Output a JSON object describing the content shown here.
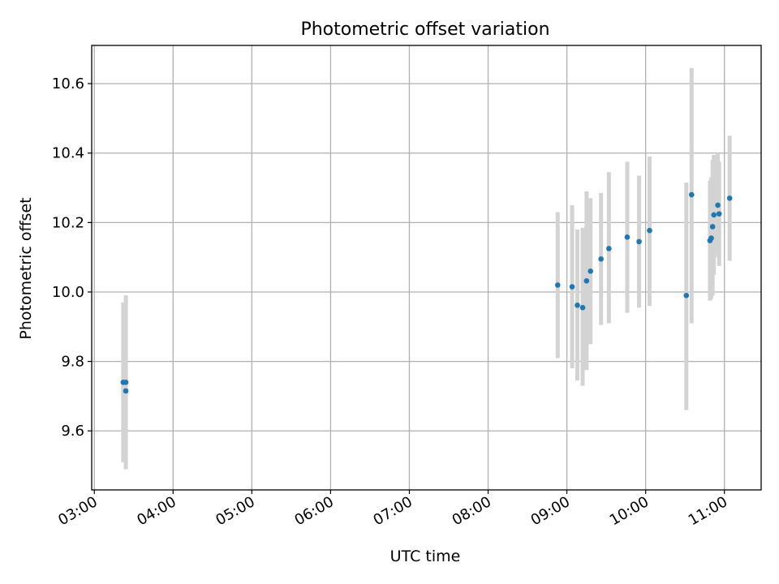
{
  "chart_data": {
    "type": "scatter",
    "title": "Photometric offset variation",
    "xlabel": "UTC time",
    "ylabel": "Photometric offset",
    "x_ticks": [
      "03:00",
      "04:00",
      "05:00",
      "06:00",
      "07:00",
      "08:00",
      "09:00",
      "10:00",
      "11:00"
    ],
    "y_ticks": [
      "9.6",
      "9.8",
      "10.0",
      "10.2",
      "10.4",
      "10.6"
    ],
    "xlim": [
      "02:58",
      "11:28"
    ],
    "ylim": [
      9.43,
      10.71
    ],
    "grid": true,
    "colors": {
      "points": "#1f77b4",
      "errorbars": "#d3d3d3",
      "grid": "#b0b0b0",
      "axes": "#000000"
    },
    "series": [
      {
        "points": [
          {
            "x": "03:22",
            "y": 9.74,
            "err_low": 9.51,
            "err_high": 9.97
          },
          {
            "x": "03:24",
            "y": 9.74,
            "err_low": 9.49,
            "err_high": 9.99
          },
          {
            "x": "03:24",
            "y": 9.715,
            "err_low": 9.49,
            "err_high": 9.99
          },
          {
            "x": "08:53",
            "y": 10.02,
            "err_low": 9.81,
            "err_high": 10.23
          },
          {
            "x": "09:04",
            "y": 10.015,
            "err_low": 9.78,
            "err_high": 10.25
          },
          {
            "x": "09:08",
            "y": 9.962,
            "err_low": 9.745,
            "err_high": 10.18
          },
          {
            "x": "09:12",
            "y": 9.955,
            "err_low": 9.73,
            "err_high": 10.185
          },
          {
            "x": "09:15",
            "y": 10.032,
            "err_low": 9.775,
            "err_high": 10.29
          },
          {
            "x": "09:18",
            "y": 10.06,
            "err_low": 9.85,
            "err_high": 10.27
          },
          {
            "x": "09:26",
            "y": 10.095,
            "err_low": 9.905,
            "err_high": 10.285
          },
          {
            "x": "09:32",
            "y": 10.125,
            "err_low": 9.91,
            "err_high": 10.345
          },
          {
            "x": "09:46",
            "y": 10.158,
            "err_low": 9.94,
            "err_high": 10.375
          },
          {
            "x": "09:55",
            "y": 10.145,
            "err_low": 9.955,
            "err_high": 10.335
          },
          {
            "x": "10:03",
            "y": 10.177,
            "err_low": 9.96,
            "err_high": 10.39
          },
          {
            "x": "10:31",
            "y": 9.99,
            "err_low": 9.66,
            "err_high": 10.315
          },
          {
            "x": "10:35",
            "y": 10.28,
            "err_low": 9.91,
            "err_high": 10.645
          },
          {
            "x": "10:49",
            "y": 10.148,
            "err_low": 9.975,
            "err_high": 10.32
          },
          {
            "x": "10:50",
            "y": 10.155,
            "err_low": 9.98,
            "err_high": 10.33
          },
          {
            "x": "10:51",
            "y": 10.188,
            "err_low": 9.99,
            "err_high": 10.38
          },
          {
            "x": "10:52",
            "y": 10.222,
            "err_low": 10.05,
            "err_high": 10.395
          },
          {
            "x": "10:55",
            "y": 10.25,
            "err_low": 10.1,
            "err_high": 10.4
          },
          {
            "x": "10:56",
            "y": 10.225,
            "err_low": 10.075,
            "err_high": 10.375
          },
          {
            "x": "11:04",
            "y": 10.27,
            "err_low": 10.09,
            "err_high": 10.45
          }
        ]
      }
    ]
  }
}
